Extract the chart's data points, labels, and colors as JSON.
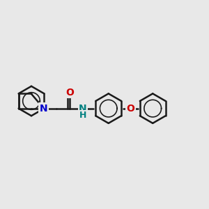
{
  "bg_color": "#e8e8e8",
  "bond_color": "#1a1a1a",
  "N_color": "#0000cc",
  "O_color": "#cc0000",
  "NH_color": "#008080",
  "bond_width": 1.8,
  "figsize": [
    3.0,
    3.0
  ],
  "dpi": 100,
  "xlim": [
    0,
    12
  ],
  "ylim": [
    0,
    10
  ]
}
